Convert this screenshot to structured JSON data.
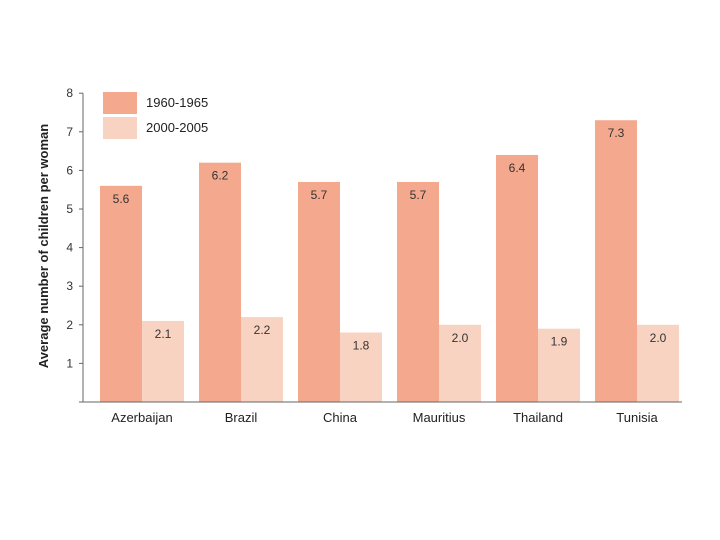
{
  "chart_data": {
    "type": "bar",
    "title": "",
    "xlabel": "",
    "ylabel": "Average number of children per woman",
    "ylim": [
      0,
      8
    ],
    "yticks": [
      "1",
      "2",
      "3",
      "4",
      "5",
      "6",
      "7",
      "8"
    ],
    "grid": false,
    "legend_position": "top-left",
    "categories": [
      "Azerbaijan",
      "Brazil",
      "China",
      "Mauritius",
      "Thailand",
      "Tunisia"
    ],
    "series": [
      {
        "name": "1960-1965",
        "color": "#f4a98e",
        "values": [
          5.6,
          6.2,
          5.7,
          5.7,
          6.4,
          7.3
        ],
        "labels": [
          "5.6",
          "6.2",
          "5.7",
          "5.7",
          "6.4",
          "7.3"
        ]
      },
      {
        "name": "2000-2005",
        "color": "#f9d3c2",
        "values": [
          2.1,
          2.2,
          1.8,
          2.0,
          1.9,
          2.0
        ],
        "labels": [
          "2.1",
          "2.2",
          "1.8",
          "2.0",
          "1.9",
          "2.0"
        ]
      }
    ]
  }
}
